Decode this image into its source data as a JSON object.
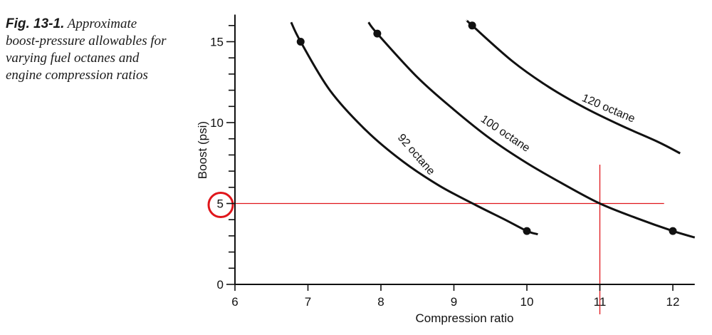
{
  "caption": {
    "label": "Fig. 13-1.",
    "text": "Approximate boost-pressure allowables for varying fuel octanes and engine compression ratios"
  },
  "colors": {
    "curve": "#111111",
    "axis": "#111111",
    "annotation": "#e0161b"
  },
  "chart_data": {
    "type": "line",
    "title": "",
    "xlabel": "Compression ratio",
    "ylabel": "Boost (psi)",
    "xlim": [
      6,
      12.3
    ],
    "ylim": [
      0,
      16.5
    ],
    "x_ticks": [
      6,
      7,
      8,
      9,
      10,
      11,
      12
    ],
    "y_ticks": [
      0,
      5,
      10,
      15
    ],
    "y_minor_step": 1,
    "grid": false,
    "series": [
      {
        "name": "92 octane",
        "points": [
          [
            6.77,
            16.2
          ],
          [
            6.9,
            15.0
          ],
          [
            7.3,
            12.0
          ],
          [
            7.8,
            9.5
          ],
          [
            8.3,
            7.6
          ],
          [
            8.8,
            6.1
          ],
          [
            9.3,
            4.9
          ],
          [
            9.7,
            4.0
          ],
          [
            10.0,
            3.3
          ],
          [
            10.15,
            3.1
          ]
        ],
        "markers": [
          [
            6.9,
            15.0
          ],
          [
            10.0,
            3.3
          ]
        ]
      },
      {
        "name": "100 octane",
        "points": [
          [
            7.83,
            16.2
          ],
          [
            7.95,
            15.5
          ],
          [
            8.5,
            12.8
          ],
          [
            9.0,
            10.8
          ],
          [
            9.5,
            9.0
          ],
          [
            10.0,
            7.5
          ],
          [
            10.5,
            6.2
          ],
          [
            11.0,
            5.0
          ],
          [
            11.5,
            4.1
          ],
          [
            12.0,
            3.3
          ],
          [
            12.3,
            2.9
          ]
        ],
        "markers": [
          [
            7.95,
            15.5
          ],
          [
            12.0,
            3.3
          ]
        ]
      },
      {
        "name": "120 octane",
        "points": [
          [
            9.18,
            16.3
          ],
          [
            9.25,
            16.0
          ],
          [
            9.8,
            13.8
          ],
          [
            10.3,
            12.2
          ],
          [
            10.8,
            10.9
          ],
          [
            11.3,
            9.8
          ],
          [
            11.8,
            8.8
          ],
          [
            12.1,
            8.1
          ]
        ],
        "markers": [
          [
            9.25,
            16.0
          ]
        ]
      }
    ],
    "annotations": {
      "highlighted_y_tick": 5,
      "crosshair": {
        "x": 11,
        "y": 5
      }
    }
  }
}
